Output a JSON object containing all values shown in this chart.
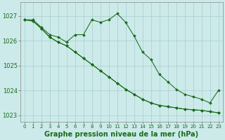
{
  "title": "Graphe pression niveau de la mer (hPa)",
  "background_color": "#cceaea",
  "grid_color": "#aacccc",
  "line_color": "#1a6b1a",
  "marker_color": "#1a6b1a",
  "x_values": [
    0,
    1,
    2,
    3,
    4,
    5,
    6,
    7,
    8,
    9,
    10,
    11,
    12,
    13,
    14,
    15,
    16,
    17,
    18,
    19,
    20,
    21,
    22,
    23
  ],
  "series1": [
    1026.85,
    1026.85,
    1026.55,
    1026.25,
    1026.15,
    1025.95,
    1026.25,
    1026.25,
    1026.85,
    1026.75,
    1026.85,
    1027.1,
    1026.75,
    1026.2,
    1025.55,
    1025.25,
    1024.65,
    1024.35,
    1024.05,
    1023.85,
    1023.75,
    1023.65,
    1023.5,
    1024.0
  ],
  "series2": [
    1026.85,
    1026.8,
    1026.5,
    1026.15,
    1025.95,
    1025.8,
    1025.55,
    1025.3,
    1025.05,
    1024.8,
    1024.55,
    1024.3,
    1024.05,
    1023.85,
    1023.65,
    1023.5,
    1023.4,
    1023.35,
    1023.3,
    1023.25,
    1023.22,
    1023.2,
    1023.15,
    1023.1
  ],
  "series3": [
    1026.85,
    1026.8,
    1026.5,
    1026.15,
    1025.95,
    1025.8,
    1025.55,
    1025.3,
    1025.05,
    1024.8,
    1024.55,
    1024.3,
    1024.05,
    1023.85,
    1023.65,
    1023.5,
    1023.4,
    1023.35,
    1023.3,
    1023.25,
    1023.22,
    1023.2,
    1023.15,
    1023.1
  ],
  "ylim": [
    1022.75,
    1027.55
  ],
  "yticks": [
    1023,
    1024,
    1025,
    1026,
    1027
  ],
  "tick_fontsize": 6,
  "title_fontsize": 7
}
